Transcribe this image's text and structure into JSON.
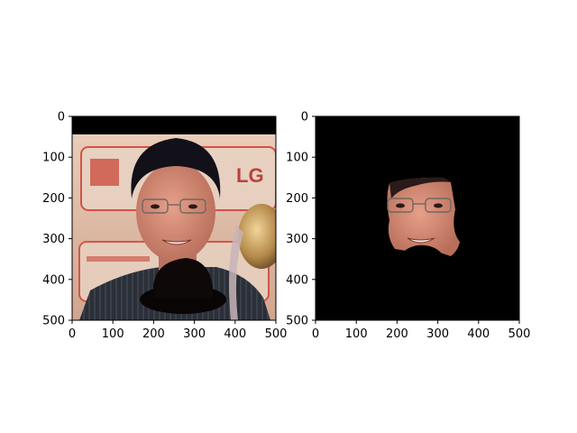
{
  "chart_data": [
    {
      "type": "image",
      "title": "",
      "xlabel": "",
      "ylabel": "",
      "xlim": [
        0,
        500
      ],
      "ylim": [
        500,
        0
      ],
      "x_ticks": [
        0,
        100,
        200,
        300,
        400,
        500
      ],
      "y_ticks": [
        0,
        100,
        200,
        300,
        400,
        500
      ],
      "image_content": "photo of a man with glasses in a dark striped shirt, a black bowler hat overlaid near the bottom, trophy at right, LG logo signage behind",
      "background_text": [
        "LG"
      ]
    },
    {
      "type": "image",
      "title": "",
      "xlabel": "",
      "ylabel": "",
      "xlim": [
        0,
        500
      ],
      "ylim": [
        500,
        0
      ],
      "x_ticks": [
        0,
        100,
        200,
        300,
        400,
        500
      ],
      "y_ticks": [
        0,
        100,
        200,
        300,
        400,
        500
      ],
      "image_content": "segmented face region on a black background"
    }
  ],
  "colors": {
    "background_black": "#000000",
    "skin": "#d8907a",
    "hair": "#121018",
    "shirt": "#2a2e36",
    "banner_bg": "#ead1bd",
    "banner_red": "#d4463a"
  }
}
